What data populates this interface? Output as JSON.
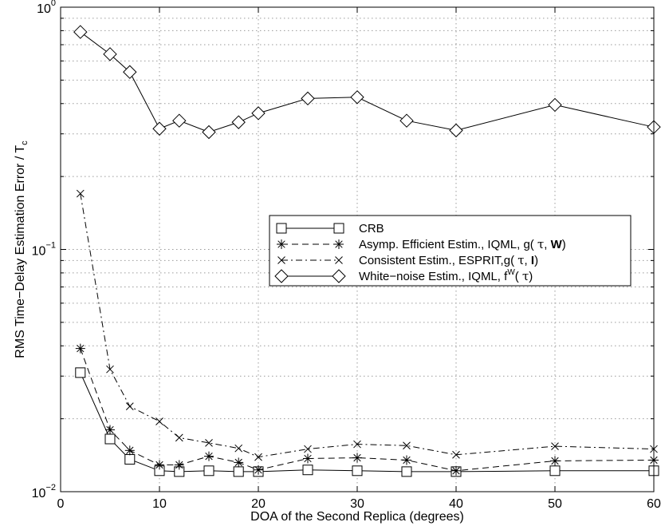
{
  "chart_data": {
    "type": "line",
    "title": "",
    "xlabel": "DOA of the Second Replica (degrees)",
    "ylabel": {
      "main": "RMS Time−Delay Estimation Error / T",
      "sub": "c"
    },
    "x_scale": "linear",
    "y_scale": "log",
    "xlim": [
      0,
      60
    ],
    "ylim": [
      0.01,
      1
    ],
    "x_ticks": [
      0,
      10,
      20,
      30,
      40,
      50,
      60
    ],
    "x_tick_labels": [
      "0",
      "10",
      "20",
      "30",
      "40",
      "50",
      "60"
    ],
    "y_ticks": [
      {
        "value": 0.01,
        "base": "10",
        "exp": "−2"
      },
      {
        "value": 0.1,
        "base": "10",
        "exp": "−1"
      },
      {
        "value": 1,
        "base": "10",
        "exp": "0"
      }
    ],
    "grid": true,
    "legend_position": "center-right",
    "series": [
      {
        "key": "crb",
        "legend": [
          {
            "t": "CRB"
          }
        ],
        "marker": "square",
        "line": "solid",
        "x": [
          2,
          5,
          7,
          10,
          12,
          15,
          18,
          20,
          25,
          30,
          35,
          40,
          50,
          60
        ],
        "y": [
          0.031,
          0.0165,
          0.0136,
          0.0122,
          0.0121,
          0.0122,
          0.0121,
          0.0121,
          0.0123,
          0.0122,
          0.0121,
          0.0121,
          0.0122,
          0.0122
        ]
      },
      {
        "key": "asymp",
        "legend": [
          {
            "t": "Asymp. Efficient Estim., IQML, g( "
          },
          {
            "t": "τ",
            "font": "serif"
          },
          {
            "t": ", "
          },
          {
            "t": "W",
            "bold": true
          },
          {
            "t": ")"
          }
        ],
        "marker": "asterisk",
        "line": "dashed",
        "x": [
          2,
          5,
          7,
          10,
          12,
          15,
          18,
          20,
          25,
          30,
          35,
          40,
          50,
          60
        ],
        "y": [
          0.039,
          0.018,
          0.0148,
          0.0129,
          0.0129,
          0.014,
          0.0132,
          0.0123,
          0.0137,
          0.0138,
          0.0135,
          0.0122,
          0.0134,
          0.0135
        ]
      },
      {
        "key": "consistent",
        "legend": [
          {
            "t": "Consistent Estim., ESPRIT,g( "
          },
          {
            "t": "τ",
            "font": "serif"
          },
          {
            "t": ", "
          },
          {
            "t": "I",
            "bold": true
          },
          {
            "t": ")"
          }
        ],
        "marker": "x",
        "line": "dashdot",
        "x": [
          2,
          5,
          7,
          10,
          12,
          15,
          18,
          20,
          25,
          30,
          35,
          40,
          50,
          60
        ],
        "y": [
          0.17,
          0.032,
          0.0225,
          0.0195,
          0.0167,
          0.0159,
          0.0151,
          0.0139,
          0.015,
          0.0157,
          0.0155,
          0.0142,
          0.0154,
          0.015
        ]
      },
      {
        "key": "white",
        "legend": [
          {
            "t": "White−noise Estim., IQML, f"
          },
          {
            "t": "W",
            "sup": true
          },
          {
            "t": "( "
          },
          {
            "t": "τ",
            "font": "serif"
          },
          {
            "t": ")"
          }
        ],
        "marker": "diamond",
        "line": "solid",
        "x": [
          2,
          5,
          7,
          10,
          12,
          15,
          18,
          20,
          25,
          30,
          35,
          40,
          50,
          60
        ],
        "y": [
          0.79,
          0.64,
          0.54,
          0.315,
          0.34,
          0.305,
          0.335,
          0.365,
          0.42,
          0.425,
          0.34,
          0.31,
          0.395,
          0.32
        ]
      }
    ]
  }
}
